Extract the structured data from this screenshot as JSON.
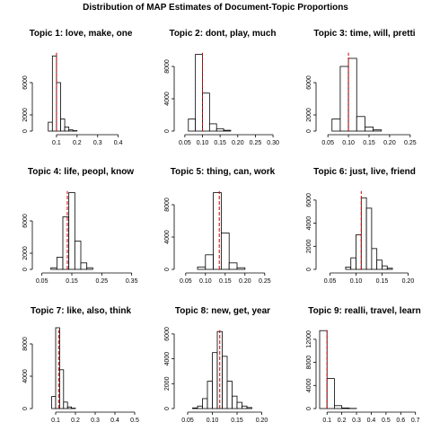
{
  "title": "Distribution of MAP Estimates of Document-Topic Proportions",
  "colors": {
    "bar_stroke": "#000000",
    "bar_fill": "#ffffff",
    "mean_line": "#cc0000"
  },
  "chart_data": [
    {
      "type": "bar",
      "title": "Topic 1: love, make, one",
      "xlim": [
        0.0,
        0.48
      ],
      "ylim": [
        0,
        10000
      ],
      "xticks": [
        0.1,
        0.2,
        0.3,
        0.4
      ],
      "xtick_labels": [
        "0.1",
        "0.2",
        "0.3",
        "0.4"
      ],
      "yticks": [
        0,
        2000,
        6000
      ],
      "ytick_labels": [
        "0",
        "2000",
        "6000"
      ],
      "bins": [
        0.06,
        0.08,
        0.1,
        0.12,
        0.14,
        0.16,
        0.18,
        0.2
      ],
      "counts": [
        1100,
        9300,
        6000,
        1500,
        500,
        150,
        50
      ],
      "mean": 0.1
    },
    {
      "type": "bar",
      "title": "Topic 2: dont, play, much",
      "xlim": [
        0.03,
        0.31
      ],
      "ylim": [
        0,
        10000
      ],
      "xticks": [
        0.05,
        0.1,
        0.15,
        0.2,
        0.25,
        0.3
      ],
      "xtick_labels": [
        "0.05",
        "0.10",
        "0.15",
        "0.20",
        "0.25",
        "0.30"
      ],
      "yticks": [
        0,
        4000,
        8000
      ],
      "ytick_labels": [
        "0",
        "4000",
        "8000"
      ],
      "bins": [
        0.06,
        0.08,
        0.1,
        0.12,
        0.14,
        0.16,
        0.18
      ],
      "counts": [
        1500,
        9500,
        4700,
        900,
        300,
        100
      ],
      "mean": 0.1
    },
    {
      "type": "bar",
      "title": "Topic 3: time, will, pretti",
      "xlim": [
        0.03,
        0.27
      ],
      "ylim": [
        0,
        10000
      ],
      "xticks": [
        0.05,
        0.1,
        0.15,
        0.2,
        0.25
      ],
      "xtick_labels": [
        "0.05",
        "0.10",
        "0.15",
        "0.20",
        "0.25"
      ],
      "yticks": [
        0,
        2000,
        6000
      ],
      "ytick_labels": [
        "0",
        "2000",
        "6000"
      ],
      "bins": [
        0.06,
        0.08,
        0.1,
        0.12,
        0.14,
        0.16,
        0.18
      ],
      "counts": [
        1500,
        8000,
        9000,
        1800,
        500,
        150
      ],
      "mean": 0.1
    },
    {
      "type": "bar",
      "title": "Topic 4: life, peopl, know",
      "xlim": [
        0.03,
        0.36
      ],
      "ylim": [
        0,
        10000
      ],
      "xticks": [
        0.05,
        0.15,
        0.25,
        0.35
      ],
      "xtick_labels": [
        "0.05",
        "0.15",
        "0.25",
        "0.35"
      ],
      "yticks": [
        0,
        2000,
        6000
      ],
      "ytick_labels": [
        "0",
        "2000",
        "6000"
      ],
      "bins": [
        0.08,
        0.1,
        0.12,
        0.14,
        0.16,
        0.18,
        0.2,
        0.22
      ],
      "counts": [
        200,
        1500,
        6500,
        9500,
        3500,
        800,
        200
      ],
      "mean": 0.135
    },
    {
      "type": "bar",
      "title": "Topic 5: thing, can, work",
      "xlim": [
        0.03,
        0.28
      ],
      "ylim": [
        0,
        10000
      ],
      "xticks": [
        0.05,
        0.1,
        0.15,
        0.2,
        0.25
      ],
      "xtick_labels": [
        "0.05",
        "0.10",
        "0.15",
        "0.20",
        "0.25"
      ],
      "yticks": [
        0,
        4000,
        8000
      ],
      "ytick_labels": [
        "0",
        "4000",
        "8000"
      ],
      "bins": [
        0.08,
        0.1,
        0.12,
        0.14,
        0.16,
        0.18,
        0.2
      ],
      "counts": [
        300,
        1800,
        9500,
        4500,
        800,
        200
      ],
      "mean": 0.135
    },
    {
      "type": "bar",
      "title": "Topic 6: just, live, friend",
      "xlim": [
        0.03,
        0.22
      ],
      "ylim": [
        0,
        7000
      ],
      "xticks": [
        0.05,
        0.1,
        0.15,
        0.2
      ],
      "xtick_labels": [
        "0.05",
        "0.10",
        "0.15",
        "0.20"
      ],
      "yticks": [
        0,
        2000,
        4000,
        6000
      ],
      "ytick_labels": [
        "0",
        "2000",
        "4000",
        "6000"
      ],
      "bins": [
        0.08,
        0.09,
        0.1,
        0.11,
        0.12,
        0.13,
        0.14,
        0.15,
        0.16,
        0.17
      ],
      "counts": [
        200,
        1000,
        3000,
        6200,
        5300,
        1800,
        800,
        300,
        100
      ],
      "mean": 0.11
    },
    {
      "type": "bar",
      "title": "Topic 7: like, also, think",
      "xlim": [
        0.0,
        0.5
      ],
      "ylim": [
        0,
        10000
      ],
      "xticks": [
        0.1,
        0.2,
        0.3,
        0.4,
        0.5
      ],
      "xtick_labels": [
        "0.1",
        "0.2",
        "0.3",
        "0.4",
        "0.5"
      ],
      "yticks": [
        0,
        4000,
        8000
      ],
      "ytick_labels": [
        "0",
        "4000",
        "8000"
      ],
      "bins": [
        0.08,
        0.1,
        0.12,
        0.14,
        0.16,
        0.18,
        0.2
      ],
      "counts": [
        1500,
        10000,
        4800,
        800,
        200,
        50
      ],
      "mean": 0.115
    },
    {
      "type": "bar",
      "title": "Topic 8: new, get, year",
      "xlim": [
        0.03,
        0.23
      ],
      "ylim": [
        0,
        6500
      ],
      "xticks": [
        0.05,
        0.1,
        0.15,
        0.2
      ],
      "xtick_labels": [
        "0.05",
        "0.10",
        "0.15",
        "0.20"
      ],
      "yticks": [
        0,
        2000,
        4000,
        6000
      ],
      "ytick_labels": [
        "0",
        "2000",
        "4000",
        "6000"
      ],
      "bins": [
        0.06,
        0.07,
        0.08,
        0.09,
        0.1,
        0.11,
        0.12,
        0.13,
        0.14,
        0.15,
        0.16,
        0.17,
        0.18
      ],
      "counts": [
        50,
        200,
        800,
        2200,
        4500,
        6200,
        4200,
        2200,
        1000,
        500,
        200,
        80
      ],
      "mean": 0.115
    },
    {
      "type": "bar",
      "title": "Topic 9: realli, travel, learn",
      "xlim": [
        0.05,
        0.72
      ],
      "ylim": [
        0,
        14000
      ],
      "xticks": [
        0.1,
        0.2,
        0.3,
        0.4,
        0.5,
        0.6,
        0.7
      ],
      "xtick_labels": [
        "0.1",
        "0.2",
        "0.3",
        "0.4",
        "0.5",
        "0.6",
        "0.7"
      ],
      "yticks": [
        0,
        4000,
        8000,
        12000
      ],
      "ytick_labels": [
        "0",
        "4000",
        "8000",
        "12000"
      ],
      "bins": [
        0.05,
        0.1,
        0.15,
        0.2,
        0.25,
        0.3
      ],
      "counts": [
        13500,
        5200,
        500,
        100,
        30
      ],
      "mean": 0.1
    }
  ]
}
